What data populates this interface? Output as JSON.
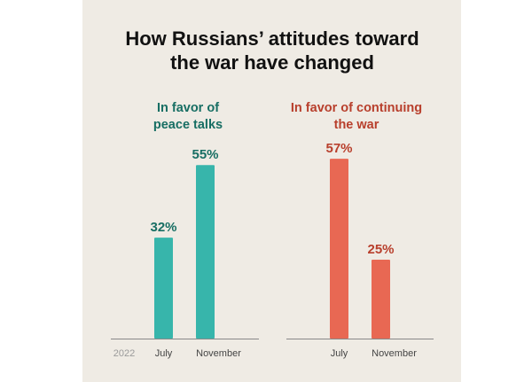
{
  "chart_data": [
    {
      "type": "bar",
      "title": [
        "How Russians’ attitudes toward",
        "the war have changed"
      ],
      "subtitle": [
        "In favor of",
        "peace talks"
      ],
      "year_label": "2022",
      "categories": [
        "July",
        "November"
      ],
      "values": [
        32,
        55
      ],
      "value_labels": [
        "32%",
        "55%"
      ],
      "color": "#37b5ab",
      "label_color": "#176e63",
      "ylim": [
        0,
        60
      ]
    },
    {
      "type": "bar",
      "subtitle": [
        "In favor of continuing",
        "the war"
      ],
      "categories": [
        "July",
        "November"
      ],
      "values": [
        57,
        25
      ],
      "value_labels": [
        "57%",
        "25%"
      ],
      "color": "#e86853",
      "label_color": "#b83f2c",
      "ylim": [
        0,
        60
      ]
    }
  ]
}
